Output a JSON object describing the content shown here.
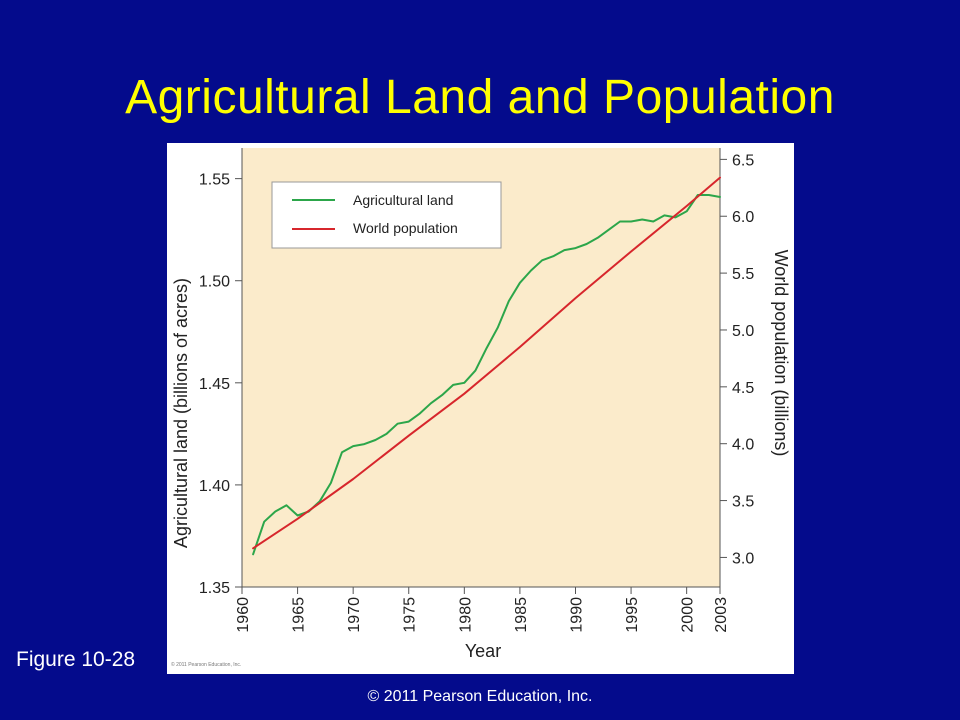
{
  "slide": {
    "title": "Agricultural Land and Population",
    "figure_label": "Figure 10-28",
    "copyright": "© 2011 Pearson Education, Inc.",
    "figure_credit": "© 2011 Pearson Education, Inc.",
    "background_color": "#040B8C",
    "title_color": "#FFFF00"
  },
  "chart_data": {
    "type": "line",
    "xlabel": "Year",
    "ylabel_left": "Agricultural land (billions of acres)",
    "ylabel_right": "World population (billions)",
    "xlim": [
      1960,
      2003
    ],
    "ylim_left": [
      1.35,
      1.565
    ],
    "ylim_right": [
      2.74,
      6.6
    ],
    "x_ticks": [
      1960,
      1965,
      1970,
      1975,
      1980,
      1985,
      1990,
      1995,
      2000,
      2003
    ],
    "y_ticks_left": [
      "1.35",
      "1.40",
      "1.45",
      "1.50",
      "1.55"
    ],
    "y_ticks_right": [
      "3.0",
      "3.5",
      "4.0",
      "4.5",
      "5.0",
      "5.5",
      "6.0",
      "6.5"
    ],
    "grid": false,
    "legend_position": "top-left",
    "plot_background": "#FBEBCB",
    "series": [
      {
        "name": "Agricultural land",
        "axis": "left",
        "color": "#2CA64A",
        "x": [
          1961,
          1962,
          1963,
          1964,
          1965,
          1966,
          1967,
          1968,
          1969,
          1970,
          1971,
          1972,
          1973,
          1974,
          1975,
          1976,
          1977,
          1978,
          1979,
          1980,
          1981,
          1982,
          1983,
          1984,
          1985,
          1986,
          1987,
          1988,
          1989,
          1990,
          1991,
          1992,
          1993,
          1994,
          1995,
          1996,
          1997,
          1998,
          1999,
          2000,
          2001,
          2002,
          2003
        ],
        "y": [
          1.366,
          1.382,
          1.387,
          1.39,
          1.385,
          1.387,
          1.392,
          1.401,
          1.416,
          1.419,
          1.42,
          1.422,
          1.425,
          1.43,
          1.431,
          1.435,
          1.44,
          1.444,
          1.449,
          1.45,
          1.456,
          1.467,
          1.477,
          1.49,
          1.499,
          1.505,
          1.51,
          1.512,
          1.515,
          1.516,
          1.518,
          1.521,
          1.525,
          1.529,
          1.529,
          1.53,
          1.529,
          1.532,
          1.531,
          1.534,
          1.542,
          1.542,
          1.541
        ]
      },
      {
        "name": "World population",
        "axis": "right",
        "color": "#D7262C",
        "x": [
          1961,
          1965,
          1970,
          1975,
          1980,
          1985,
          1990,
          1995,
          2000,
          2003
        ],
        "y": [
          3.08,
          3.34,
          3.69,
          4.07,
          4.44,
          4.85,
          5.28,
          5.69,
          6.09,
          6.34
        ]
      }
    ]
  }
}
